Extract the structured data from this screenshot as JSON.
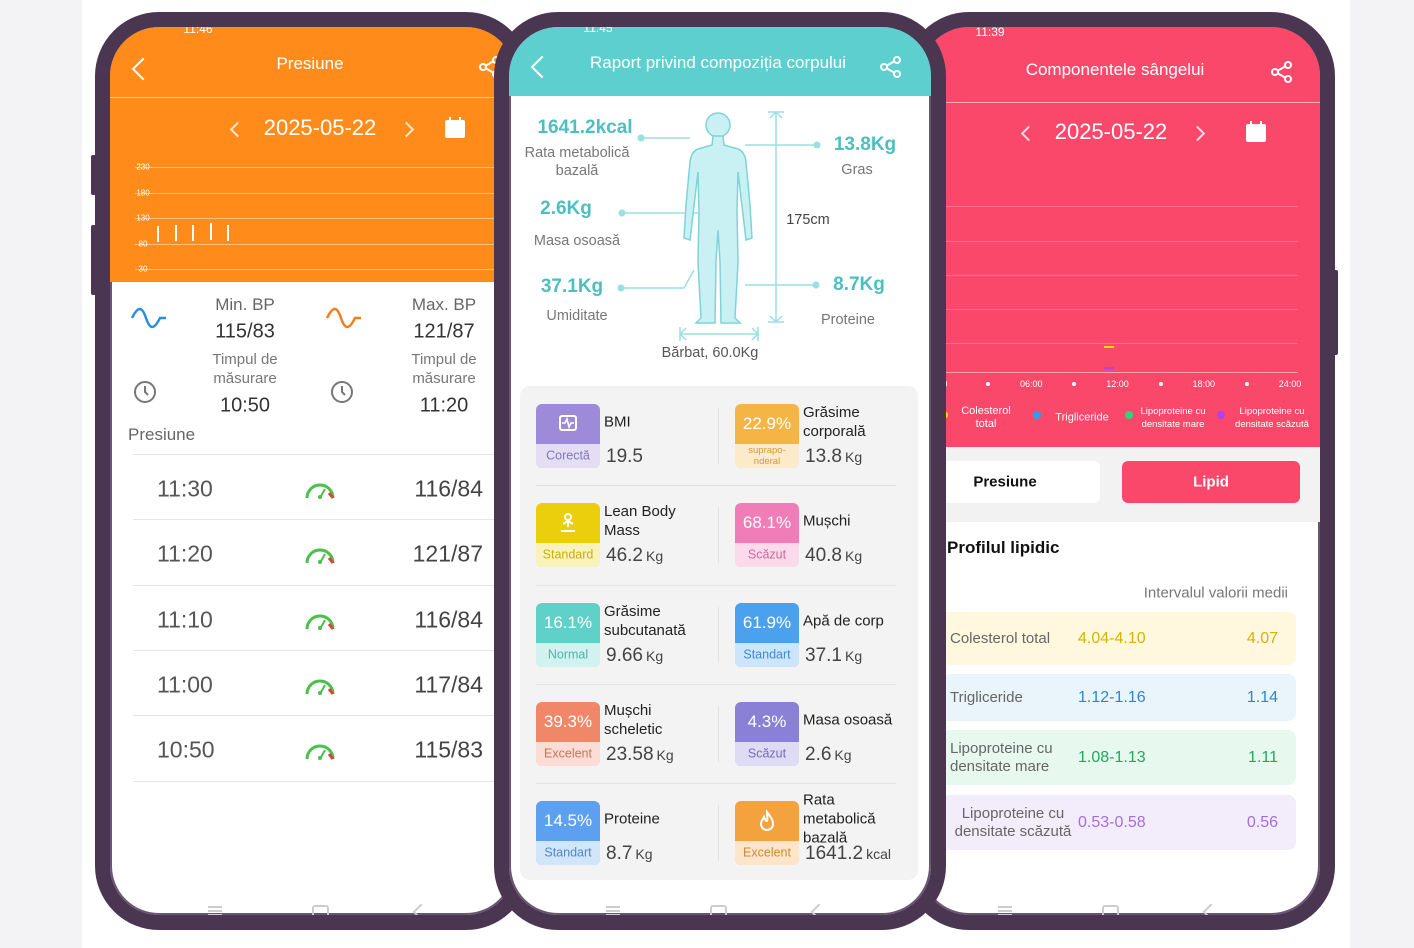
{
  "left_screen": {
    "status_time": "11:46",
    "title": "Presiune",
    "date": "2025-05-22",
    "chart": {
      "ylim": [
        30,
        230
      ],
      "yticks": [
        30,
        80,
        130,
        180,
        230
      ]
    },
    "min_bp": {
      "label": "Min. BP",
      "value": "115/83",
      "time_label": "Timpul de măsurare",
      "time": "10:50"
    },
    "max_bp": {
      "label": "Max. BP",
      "value": "121/87",
      "time_label": "Timpul de măsurare",
      "time": "11:20"
    },
    "section_title": "Presiune",
    "records": [
      {
        "time": "11:30",
        "value": "116/84"
      },
      {
        "time": "11:20",
        "value": "121/87"
      },
      {
        "time": "11:10",
        "value": "116/84"
      },
      {
        "time": "11:00",
        "value": "117/84"
      },
      {
        "time": "10:50",
        "value": "115/83"
      }
    ]
  },
  "middle_screen": {
    "status_time": "11:45",
    "title": "Raport privind compoziția corpului",
    "body": {
      "bmr": {
        "value": "1641.2kcal",
        "label": "Rata metabolică bazală"
      },
      "bone": {
        "value": "2.6Kg",
        "label": "Masa osoasă"
      },
      "water": {
        "value": "37.1Kg",
        "label": "Umiditate"
      },
      "fat": {
        "value": "13.8Kg",
        "label": "Gras"
      },
      "protein": {
        "value": "8.7Kg",
        "label": "Proteine"
      },
      "height": "175cm",
      "profile": "Bărbat, 60.0Kg"
    },
    "metrics": [
      {
        "name": "BMI",
        "status": "Corectă",
        "value": "19.5",
        "color": "#9d8ad8"
      },
      {
        "name": "Grăsime corporală",
        "badge": "22.9%",
        "status": "suprapo-nderal",
        "value": "13.8",
        "unit": "Kg",
        "color": "#f5b545"
      },
      {
        "name": "Lean Body Mass",
        "status": "Standard",
        "value": "46.2",
        "unit": "Kg",
        "color": "#eccf0c"
      },
      {
        "name": "Mușchi",
        "badge": "68.1%",
        "status": "Scăzut",
        "value": "40.8",
        "unit": "Kg",
        "color": "#f07cb8"
      },
      {
        "name": "Grăsime subcutanată",
        "badge": "16.1%",
        "status": "Normal",
        "value": "9.66",
        "unit": "Kg",
        "color": "#5fd1c8"
      },
      {
        "name": "Apă de corp",
        "badge": "61.9%",
        "status": "Standart",
        "value": "37.1",
        "unit": "Kg",
        "color": "#4aa2ef"
      },
      {
        "name": "Mușchi scheletic",
        "badge": "39.3%",
        "status": "Excelent",
        "value": "23.58",
        "unit": "Kg",
        "color": "#f08768"
      },
      {
        "name": "Masa osoasă",
        "badge": "4.3%",
        "status": "Scăzut",
        "value": "2.6",
        "unit": "Kg",
        "color": "#8a80d6"
      },
      {
        "name": "Proteine",
        "badge": "14.5%",
        "status": "Standart",
        "value": "8.7",
        "unit": "Kg",
        "color": "#5ca0ef"
      },
      {
        "name": "Rata metabolică bazală",
        "status": "Excelent",
        "value": "1641.2",
        "unit": "kcal",
        "color": "#f4a23e"
      }
    ]
  },
  "right_screen": {
    "status_time": "11:39",
    "title": "Componentele sângelui",
    "date": "2025-05-22",
    "chart_x_labels": [
      "0",
      "06:00",
      "12:00",
      "18:00",
      "24:00"
    ],
    "legend": [
      {
        "name": "Colesterol total",
        "color": "#f5d90a"
      },
      {
        "name": "Trigliceride",
        "color": "#2f9cf0"
      },
      {
        "name": "Lipoproteine cu densitate mare",
        "color": "#2ed47a"
      },
      {
        "name": "Lipoproteine cu densitate scăzută",
        "color": "#b040f0"
      }
    ],
    "tabs": [
      "Presiune",
      "Lipid"
    ],
    "section_title": "Profilul lipidic",
    "column_header": "Intervalul valorii medii",
    "rows": [
      {
        "name": "Colesterol total",
        "range": "4.04-4.10",
        "average": "4.07",
        "color": "#d4b400",
        "background": "#fff8df"
      },
      {
        "name": "Trigliceride",
        "range": "1.12-1.16",
        "average": "1.14",
        "color": "#2a88d2",
        "background": "#e9f4fb"
      },
      {
        "name": "Lipoproteine cu densitate mare",
        "range": "1.08-1.13",
        "average": "1.11",
        "color": "#1faa5c",
        "background": "#e7f8ef"
      },
      {
        "name": "Lipoproteine cu densitate scăzută",
        "range": "0.53-0.58",
        "average": "0.56",
        "color": "#a56ee0",
        "background": "#f3ecfb"
      }
    ]
  }
}
